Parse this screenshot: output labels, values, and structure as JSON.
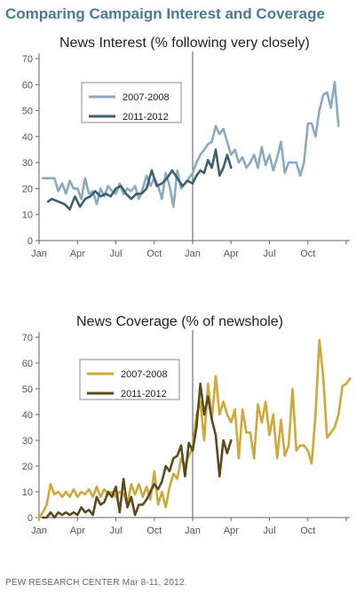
{
  "page_title": "Comparing Campaign Interest and Coverage",
  "footer": "PEW RESEARCH CENTER Mar 8-11, 2012.",
  "colors": {
    "title": "#4a7a94",
    "series_2007_interest": "#8aaac2",
    "series_2011_interest": "#3d5f72",
    "series_2007_coverage": "#cfa83a",
    "series_2011_coverage": "#5a4a1c"
  },
  "chart_data": [
    {
      "type": "line",
      "title": "News Interest (% following very closely)",
      "xlabel": "",
      "ylabel": "",
      "ylim": [
        0,
        70
      ],
      "yticks": [
        0,
        10,
        20,
        30,
        40,
        50,
        60,
        70
      ],
      "xticks": [
        "Jan",
        "Apr",
        "Jul",
        "Oct",
        "Jan",
        "Apr",
        "Jul",
        "Oct"
      ],
      "xlim_months": [
        0,
        24
      ],
      "legend_position": "top-left",
      "series": [
        {
          "name": "2007-2008",
          "color": "#8aaac2",
          "points": [
            [
              0.3,
              24
            ],
            [
              0.8,
              24
            ],
            [
              1.2,
              24
            ],
            [
              1.5,
              19
            ],
            [
              1.8,
              22
            ],
            [
              2.1,
              18
            ],
            [
              2.4,
              23
            ],
            [
              2.7,
              20
            ],
            [
              3.0,
              20
            ],
            [
              3.3,
              16
            ],
            [
              3.6,
              24
            ],
            [
              3.9,
              18
            ],
            [
              4.2,
              19
            ],
            [
              4.5,
              14
            ],
            [
              4.8,
              20
            ],
            [
              5.1,
              17
            ],
            [
              5.4,
              21
            ],
            [
              5.7,
              19
            ],
            [
              6.0,
              18
            ],
            [
              6.3,
              22
            ],
            [
              6.6,
              18
            ],
            [
              6.9,
              20
            ],
            [
              7.2,
              19
            ],
            [
              7.5,
              21
            ],
            [
              7.8,
              16
            ],
            [
              8.1,
              20
            ],
            [
              8.4,
              25
            ],
            [
              8.7,
              21
            ],
            [
              9.0,
              24
            ],
            [
              9.3,
              21
            ],
            [
              9.6,
              16
            ],
            [
              9.9,
              26
            ],
            [
              10.2,
              21
            ],
            [
              10.5,
              13
            ],
            [
              10.8,
              27
            ],
            [
              11.1,
              20
            ],
            [
              11.4,
              22
            ],
            [
              11.7,
              24
            ],
            [
              12.0,
              26
            ],
            [
              12.3,
              30
            ],
            [
              12.6,
              33
            ],
            [
              12.9,
              35
            ],
            [
              13.2,
              37
            ],
            [
              13.5,
              38
            ],
            [
              13.8,
              44
            ],
            [
              14.1,
              41
            ],
            [
              14.4,
              43
            ],
            [
              14.7,
              38
            ],
            [
              15.0,
              33
            ],
            [
              15.3,
              35
            ],
            [
              15.6,
              30
            ],
            [
              15.9,
              32
            ],
            [
              16.2,
              28
            ],
            [
              16.5,
              30
            ],
            [
              16.8,
              33
            ],
            [
              17.1,
              28
            ],
            [
              17.4,
              36
            ],
            [
              17.7,
              29
            ],
            [
              18.0,
              33
            ],
            [
              18.3,
              27
            ],
            [
              18.6,
              32
            ],
            [
              18.9,
              38
            ],
            [
              19.2,
              26
            ],
            [
              19.5,
              30
            ],
            [
              19.8,
              30
            ],
            [
              20.1,
              30
            ],
            [
              20.4,
              25
            ],
            [
              20.7,
              30
            ],
            [
              21.0,
              45
            ],
            [
              21.3,
              45
            ],
            [
              21.6,
              40
            ],
            [
              21.9,
              50
            ],
            [
              22.2,
              56
            ],
            [
              22.5,
              57
            ],
            [
              22.8,
              51
            ],
            [
              23.1,
              61
            ],
            [
              23.4,
              44
            ]
          ]
        },
        {
          "name": "2011-2012",
          "color": "#3d5f72",
          "points": [
            [
              0.7,
              15
            ],
            [
              1.0,
              16
            ],
            [
              1.5,
              15
            ],
            [
              2.0,
              14
            ],
            [
              2.4,
              12
            ],
            [
              2.8,
              17
            ],
            [
              3.2,
              13
            ],
            [
              3.6,
              16
            ],
            [
              4.0,
              17
            ],
            [
              4.4,
              19
            ],
            [
              4.8,
              17
            ],
            [
              5.2,
              18
            ],
            [
              5.6,
              17
            ],
            [
              6.0,
              20
            ],
            [
              6.4,
              21
            ],
            [
              6.8,
              18
            ],
            [
              7.2,
              16
            ],
            [
              7.6,
              18
            ],
            [
              8.0,
              18
            ],
            [
              8.4,
              20
            ],
            [
              8.8,
              27
            ],
            [
              9.2,
              21
            ],
            [
              9.6,
              22
            ],
            [
              10.0,
              24
            ],
            [
              10.4,
              27
            ],
            [
              10.8,
              24
            ],
            [
              11.2,
              21
            ],
            [
              11.6,
              23
            ],
            [
              12.0,
              22
            ],
            [
              12.3,
              25
            ],
            [
              12.6,
              27
            ],
            [
              12.9,
              26
            ],
            [
              13.2,
              31
            ],
            [
              13.5,
              28
            ],
            [
              13.8,
              35
            ],
            [
              14.1,
              25
            ],
            [
              14.4,
              28
            ],
            [
              14.7,
              33
            ],
            [
              15.0,
              28
            ]
          ]
        }
      ]
    },
    {
      "type": "line",
      "title": "News Coverage (% of newshole)",
      "xlabel": "",
      "ylabel": "",
      "ylim": [
        0,
        70
      ],
      "yticks": [
        0,
        10,
        20,
        30,
        40,
        50,
        60,
        70
      ],
      "xticks": [
        "Jan",
        "Apr",
        "Jul",
        "Oct",
        "Jan",
        "Apr",
        "Jul",
        "Oct"
      ],
      "xlim_months": [
        0,
        24
      ],
      "legend_position": "top-left",
      "series": [
        {
          "name": "2007-2008",
          "color": "#cfa83a",
          "points": [
            [
              0.0,
              0
            ],
            [
              0.3,
              2
            ],
            [
              0.6,
              5
            ],
            [
              0.9,
              13
            ],
            [
              1.2,
              9
            ],
            [
              1.5,
              10
            ],
            [
              1.8,
              8
            ],
            [
              2.1,
              10
            ],
            [
              2.4,
              8
            ],
            [
              2.7,
              11
            ],
            [
              3.0,
              8
            ],
            [
              3.3,
              10
            ],
            [
              3.6,
              9
            ],
            [
              3.9,
              11
            ],
            [
              4.2,
              8
            ],
            [
              4.5,
              12
            ],
            [
              4.8,
              8
            ],
            [
              5.1,
              11
            ],
            [
              5.4,
              9
            ],
            [
              5.7,
              10
            ],
            [
              6.0,
              8
            ],
            [
              6.3,
              10
            ],
            [
              6.6,
              9
            ],
            [
              6.9,
              5
            ],
            [
              7.2,
              13
            ],
            [
              7.5,
              9
            ],
            [
              7.8,
              13
            ],
            [
              8.1,
              8
            ],
            [
              8.4,
              12
            ],
            [
              8.7,
              7
            ],
            [
              9.0,
              18
            ],
            [
              9.3,
              5
            ],
            [
              9.6,
              10
            ],
            [
              9.9,
              4
            ],
            [
              10.2,
              12
            ],
            [
              10.5,
              17
            ],
            [
              10.8,
              15
            ],
            [
              11.1,
              23
            ],
            [
              11.4,
              20
            ],
            [
              11.7,
              24
            ],
            [
              12.0,
              27
            ],
            [
              12.3,
              40
            ],
            [
              12.6,
              45
            ],
            [
              12.9,
              30
            ],
            [
              13.2,
              52
            ],
            [
              13.5,
              38
            ],
            [
              13.8,
              55
            ],
            [
              14.1,
              40
            ],
            [
              14.4,
              45
            ],
            [
              14.7,
              40
            ],
            [
              15.0,
              37
            ],
            [
              15.3,
              42
            ],
            [
              15.6,
              23
            ],
            [
              15.9,
              42
            ],
            [
              16.2,
              33
            ],
            [
              16.5,
              33
            ],
            [
              16.8,
              23
            ],
            [
              17.1,
              44
            ],
            [
              17.4,
              37
            ],
            [
              17.7,
              45
            ],
            [
              18.0,
              32
            ],
            [
              18.3,
              40
            ],
            [
              18.6,
              23
            ],
            [
              18.9,
              38
            ],
            [
              19.2,
              24
            ],
            [
              19.5,
              28
            ],
            [
              19.8,
              50
            ],
            [
              20.1,
              26
            ],
            [
              20.4,
              28
            ],
            [
              20.7,
              28
            ],
            [
              21.0,
              26
            ],
            [
              21.3,
              21
            ],
            [
              21.6,
              40
            ],
            [
              21.9,
              69
            ],
            [
              22.2,
              55
            ],
            [
              22.5,
              31
            ],
            [
              22.8,
              33
            ],
            [
              23.1,
              35
            ],
            [
              23.4,
              40
            ],
            [
              23.7,
              51
            ],
            [
              24.0,
              52
            ],
            [
              24.3,
              54
            ]
          ]
        },
        {
          "name": "2011-2012",
          "color": "#5a4a1c",
          "points": [
            [
              0.3,
              0
            ],
            [
              0.6,
              0
            ],
            [
              0.9,
              2
            ],
            [
              1.2,
              0
            ],
            [
              1.5,
              2
            ],
            [
              1.8,
              1
            ],
            [
              2.1,
              2
            ],
            [
              2.4,
              1
            ],
            [
              2.7,
              2
            ],
            [
              3.0,
              1
            ],
            [
              3.3,
              4
            ],
            [
              3.6,
              2
            ],
            [
              3.9,
              3
            ],
            [
              4.2,
              1
            ],
            [
              4.5,
              8
            ],
            [
              4.8,
              5
            ],
            [
              5.1,
              6
            ],
            [
              5.4,
              10
            ],
            [
              5.7,
              8
            ],
            [
              6.0,
              12
            ],
            [
              6.3,
              2
            ],
            [
              6.6,
              15
            ],
            [
              6.9,
              4
            ],
            [
              7.2,
              8
            ],
            [
              7.5,
              1
            ],
            [
              7.8,
              5
            ],
            [
              8.1,
              5
            ],
            [
              8.4,
              7
            ],
            [
              8.7,
              10
            ],
            [
              9.0,
              13
            ],
            [
              9.3,
              11
            ],
            [
              9.6,
              14
            ],
            [
              9.9,
              20
            ],
            [
              10.2,
              18
            ],
            [
              10.5,
              23
            ],
            [
              10.8,
              24
            ],
            [
              11.1,
              28
            ],
            [
              11.4,
              16
            ],
            [
              11.7,
              29
            ],
            [
              12.0,
              26
            ],
            [
              12.3,
              35
            ],
            [
              12.6,
              52
            ],
            [
              12.9,
              40
            ],
            [
              13.2,
              47
            ],
            [
              13.5,
              38
            ],
            [
              13.8,
              32
            ],
            [
              14.1,
              16
            ],
            [
              14.4,
              30
            ],
            [
              14.7,
              25
            ],
            [
              15.0,
              30
            ]
          ]
        }
      ]
    }
  ]
}
